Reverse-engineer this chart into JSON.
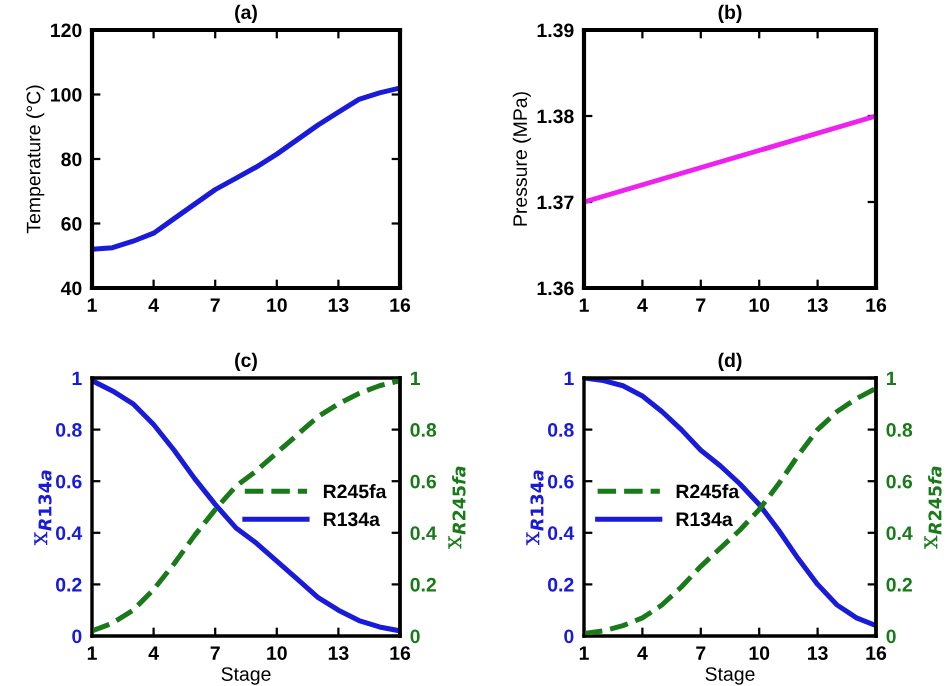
{
  "chart_data": [
    {
      "type": "line",
      "title": "(a)",
      "ylabel": "Temperature (°C)",
      "x": [
        1,
        2,
        3,
        4,
        5,
        6,
        7,
        8,
        9,
        10,
        11,
        12,
        13,
        14,
        15,
        16
      ],
      "xlim": [
        1,
        16
      ],
      "xticks": [
        1,
        4,
        7,
        10,
        13,
        16
      ],
      "ylim": [
        40,
        120
      ],
      "yticks": [
        40,
        60,
        80,
        100,
        120
      ],
      "series": [
        {
          "color": "#1a1adb",
          "line_style": "solid",
          "values": [
            52,
            52.5,
            54.5,
            57,
            61.5,
            66,
            70.5,
            74,
            77.5,
            81.5,
            86,
            90.5,
            94.5,
            98.5,
            100.5,
            102
          ]
        }
      ]
    },
    {
      "type": "line",
      "title": "(b)",
      "ylabel": "Pressure (MPa)",
      "xlim": [
        1,
        16
      ],
      "xticks": [
        1,
        4,
        7,
        10,
        13,
        16
      ],
      "ylim": [
        1.36,
        1.39
      ],
      "yticks": [
        1.36,
        1.37,
        1.38,
        1.39
      ],
      "series": [
        {
          "color": "#ee22ee",
          "line_style": "solid",
          "x": [
            1,
            16
          ],
          "values": [
            1.37,
            1.38
          ]
        }
      ]
    },
    {
      "type": "line",
      "title": "(c)",
      "xlabel": "Stage",
      "ylabel": "x$_{R134a}$",
      "y2label": "x$_{R245fa}$",
      "x": [
        1,
        2,
        3,
        4,
        5,
        6,
        7,
        8,
        9,
        10,
        11,
        12,
        13,
        14,
        15,
        16
      ],
      "xlim": [
        1,
        16
      ],
      "xticks": [
        1,
        4,
        7,
        10,
        13,
        16
      ],
      "ylim": [
        0,
        1
      ],
      "yticks": [
        0,
        0.2,
        0.4,
        0.6,
        0.8,
        1
      ],
      "y2lim": [
        0,
        1
      ],
      "y2ticks": [
        0,
        0.2,
        0.4,
        0.6,
        0.8,
        1
      ],
      "legend": "center right",
      "series": [
        {
          "name": "R245fa",
          "color": "#1a7a1a",
          "line_style": "dashed",
          "axis": "y2",
          "values": [
            0.02,
            0.05,
            0.1,
            0.18,
            0.28,
            0.39,
            0.49,
            0.58,
            0.64,
            0.71,
            0.78,
            0.85,
            0.9,
            0.94,
            0.97,
            0.99
          ]
        },
        {
          "name": "R134a",
          "color": "#1a1adb",
          "line_style": "solid",
          "values": [
            0.99,
            0.95,
            0.9,
            0.82,
            0.72,
            0.61,
            0.51,
            0.42,
            0.36,
            0.29,
            0.22,
            0.15,
            0.1,
            0.06,
            0.035,
            0.02
          ]
        }
      ]
    },
    {
      "type": "line",
      "title": "(d)",
      "xlabel": "Stage",
      "ylabel": "x$_{R134a}$",
      "y2label": "x$_{R245fa}$",
      "x": [
        1,
        2,
        3,
        4,
        5,
        6,
        7,
        8,
        9,
        10,
        11,
        12,
        13,
        14,
        15,
        16
      ],
      "xlim": [
        1,
        16
      ],
      "xticks": [
        1,
        4,
        7,
        10,
        13,
        16
      ],
      "ylim": [
        0,
        1
      ],
      "yticks": [
        0,
        0.2,
        0.4,
        0.6,
        0.8,
        1
      ],
      "y2lim": [
        0,
        1
      ],
      "y2ticks": [
        0,
        0.2,
        0.4,
        0.6,
        0.8,
        1
      ],
      "legend": "center left",
      "series": [
        {
          "name": "R245fa",
          "color": "#1a7a1a",
          "line_style": "dashed",
          "axis": "y2",
          "values": [
            0.01,
            0.02,
            0.04,
            0.07,
            0.12,
            0.19,
            0.27,
            0.34,
            0.41,
            0.49,
            0.59,
            0.7,
            0.8,
            0.87,
            0.92,
            0.96
          ]
        },
        {
          "name": "R134a",
          "color": "#1a1adb",
          "line_style": "solid",
          "values": [
            1.0,
            0.99,
            0.97,
            0.93,
            0.87,
            0.8,
            0.72,
            0.66,
            0.59,
            0.51,
            0.41,
            0.3,
            0.2,
            0.12,
            0.07,
            0.04
          ]
        }
      ]
    }
  ]
}
